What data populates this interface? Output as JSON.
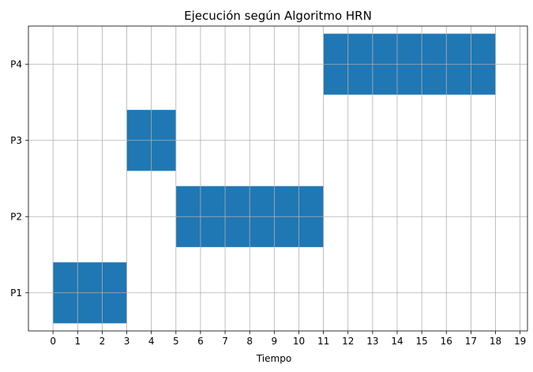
{
  "chart_data": {
    "type": "bar",
    "orientation": "horizontal-gantt",
    "title": "Ejecución según Algoritmo HRN",
    "xlabel": "Tiempo",
    "ylabel": "",
    "xlim": [
      -1,
      19.3
    ],
    "ylim": [
      0.5,
      4.5
    ],
    "xticks": [
      0,
      1,
      2,
      3,
      4,
      5,
      6,
      7,
      8,
      9,
      10,
      11,
      12,
      13,
      14,
      15,
      16,
      17,
      18,
      19
    ],
    "categories": [
      "P1",
      "P2",
      "P3",
      "P4"
    ],
    "grid": true,
    "bar_color": "#1f77b4",
    "segments": [
      {
        "process": "P1",
        "start": 0,
        "end": 3
      },
      {
        "process": "P3",
        "start": 3,
        "end": 5
      },
      {
        "process": "P2",
        "start": 5,
        "end": 11
      },
      {
        "process": "P4",
        "start": 11,
        "end": 18
      }
    ]
  }
}
